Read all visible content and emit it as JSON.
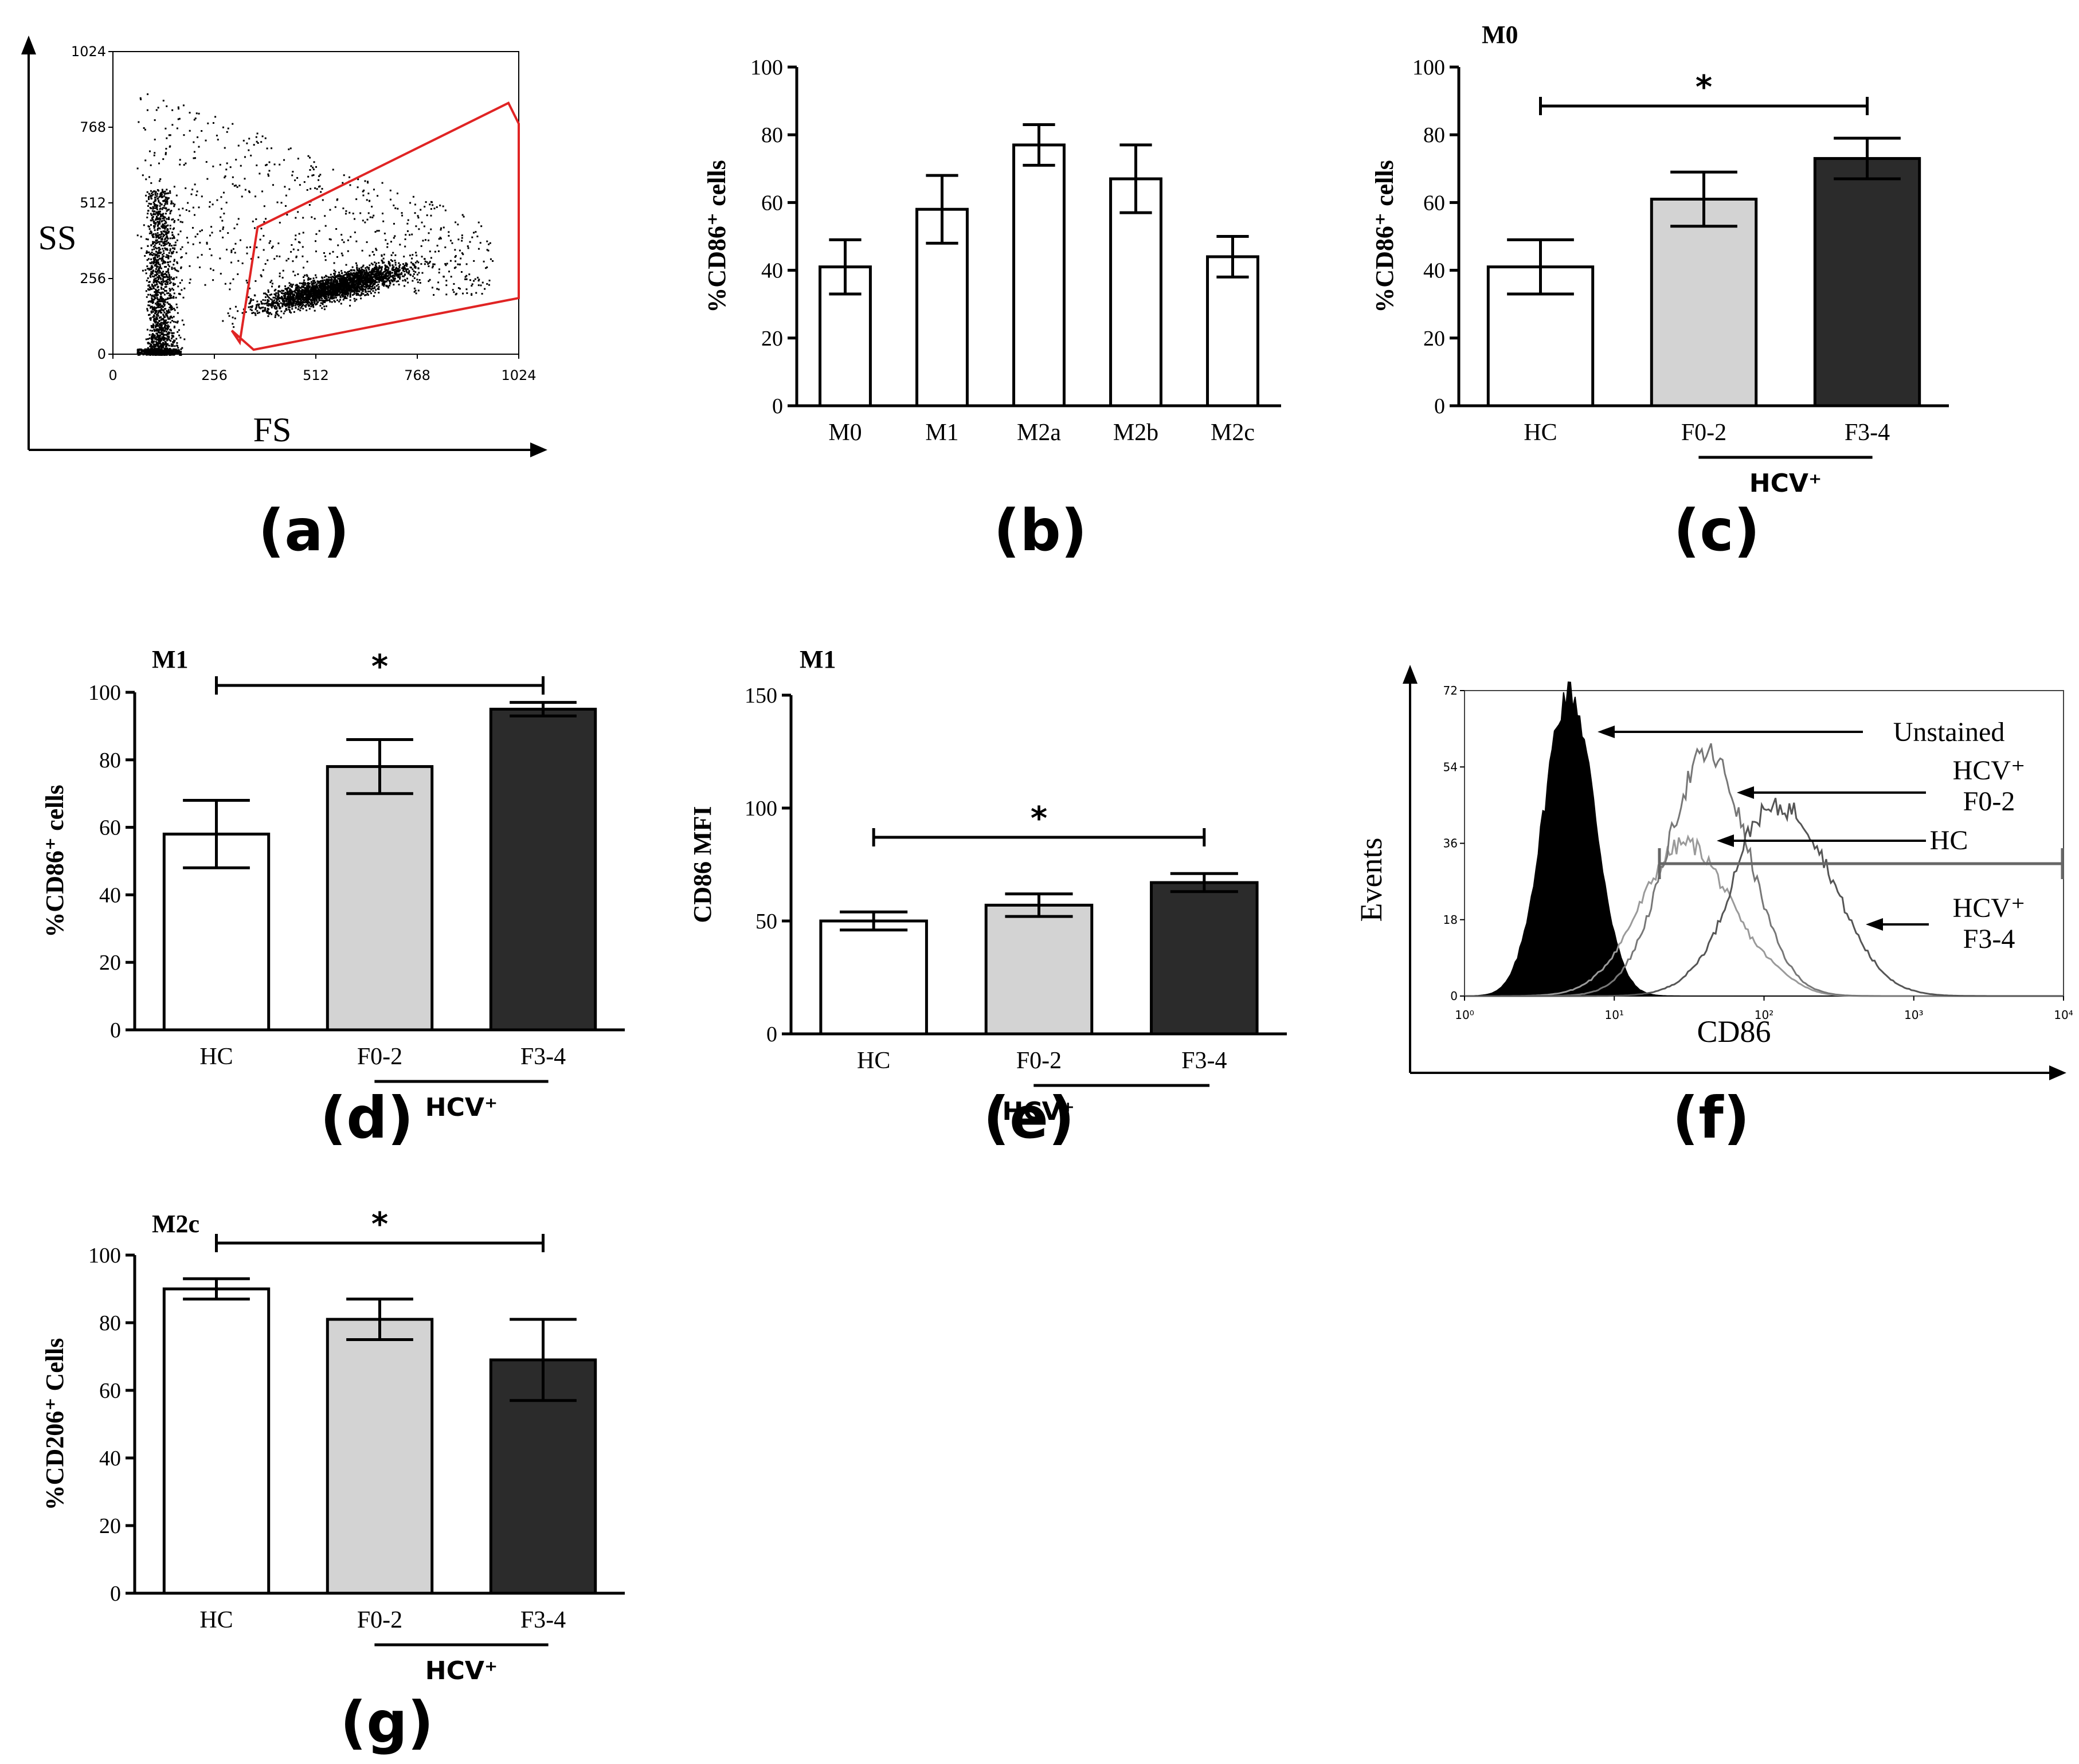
{
  "colors": {
    "hc": "#ffffff",
    "f02": "#d3d3d3",
    "f34": "#2b2b2b",
    "gate": "#e02424",
    "ink": "#000000",
    "hc_line": "#9a9a9a",
    "f02_line": "#777777",
    "f34_line": "#555555"
  },
  "chart_data": [
    {
      "panel": "(a)",
      "type": "scatter",
      "xlabel": "FS",
      "ylabel": "SS",
      "xticks": [
        "0",
        "256",
        "512",
        "768",
        "1024"
      ],
      "yticks": [
        "0",
        "256",
        "512",
        "768",
        "1024"
      ],
      "gate": "polygon gate (red) around the main macrophage population"
    },
    {
      "panel": "(b)",
      "type": "bar",
      "ylabel": "%CD86⁺ cells",
      "ylim": [
        0,
        100
      ],
      "yticks": [
        "0",
        "20",
        "40",
        "60",
        "80",
        "100"
      ],
      "categories": [
        "M0",
        "M1",
        "M2a",
        "M2b",
        "M2c"
      ],
      "values": [
        41,
        58,
        77,
        67,
        44
      ],
      "errors": [
        8,
        10,
        6,
        10,
        6
      ]
    },
    {
      "panel": "(c)",
      "type": "bar",
      "title": "M0",
      "ylabel": "%CD86⁺ cells",
      "ylim": [
        0,
        100
      ],
      "yticks": [
        "0",
        "20",
        "40",
        "60",
        "80",
        "100"
      ],
      "categories": [
        "HC",
        "F0-2",
        "F3-4"
      ],
      "values": [
        41,
        61,
        73
      ],
      "errors": [
        8,
        8,
        6
      ],
      "group_label": "HCV⁺",
      "sig": "*"
    },
    {
      "panel": "(d)",
      "type": "bar",
      "title": "M1",
      "ylabel": "%CD86⁺ cells",
      "ylim": [
        0,
        100
      ],
      "yticks": [
        "0",
        "20",
        "40",
        "60",
        "80",
        "100"
      ],
      "categories": [
        "HC",
        "F0-2",
        "F3-4"
      ],
      "values": [
        58,
        78,
        95
      ],
      "errors": [
        10,
        8,
        2
      ],
      "group_label": "HCV⁺",
      "sig": "*"
    },
    {
      "panel": "(e)",
      "type": "bar",
      "title": "M1",
      "ylabel": "CD86 MFI",
      "ylim": [
        0,
        150
      ],
      "yticks": [
        "0",
        "50",
        "100",
        "150"
      ],
      "categories": [
        "HC",
        "F0-2",
        "F3-4"
      ],
      "values": [
        50,
        57,
        67
      ],
      "errors": [
        4,
        5,
        4
      ],
      "group_label": "HCV⁺",
      "sig": "*"
    },
    {
      "panel": "(f)",
      "type": "line",
      "xlabel": "CD86",
      "ylabel": "Events",
      "xscale": "log",
      "xlim": [
        1,
        10000
      ],
      "xticks": [
        "10⁰",
        "10¹",
        "10²",
        "10³",
        "10⁴"
      ],
      "yticks": [
        "0",
        "18",
        "36",
        "54",
        "72"
      ],
      "ylim": [
        0,
        72
      ],
      "series": [
        {
          "name": "Unstained",
          "filled": true,
          "peak_x": 5,
          "peak_y": 72,
          "spread": 0.17
        },
        {
          "name": "HC",
          "filled": false,
          "peak_x": 30,
          "peak_y": 36,
          "spread": 0.3
        },
        {
          "name": "HCV⁺ F0-2",
          "filled": false,
          "peak_x": 42,
          "peak_y": 57,
          "spread": 0.27
        },
        {
          "name": "HCV⁺ F3-4",
          "filled": false,
          "peak_x": 140,
          "peak_y": 44,
          "spread": 0.32
        }
      ],
      "labels": {
        "unstained": "Unstained",
        "hcv": "HCV⁺",
        "f02": "F0-2",
        "hc": "HC",
        "f34": "F3-4"
      }
    },
    {
      "panel": "(g)",
      "type": "bar",
      "title": "M2c",
      "ylabel": "%CD206⁺ Cells",
      "ylim": [
        0,
        100
      ],
      "yticks": [
        "0",
        "20",
        "40",
        "60",
        "80",
        "100"
      ],
      "categories": [
        "HC",
        "F0-2",
        "F3-4"
      ],
      "values": [
        90,
        81,
        69
      ],
      "errors": [
        3,
        6,
        12
      ],
      "group_label": "HCV⁺",
      "sig": "*"
    }
  ]
}
